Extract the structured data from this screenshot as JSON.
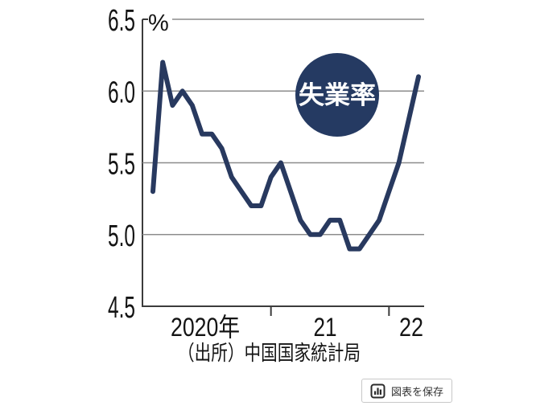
{
  "chart_data": {
    "type": "line",
    "badge_label": "失業率",
    "unit_label": "%",
    "x": [
      "2020-01",
      "2020-02",
      "2020-03",
      "2020-04",
      "2020-05",
      "2020-06",
      "2020-07",
      "2020-08",
      "2020-09",
      "2020-10",
      "2020-11",
      "2020-12",
      "2021-01",
      "2021-02",
      "2021-03",
      "2021-04",
      "2021-05",
      "2021-06",
      "2021-07",
      "2021-08",
      "2021-09",
      "2021-10",
      "2021-11",
      "2021-12",
      "2022-01",
      "2022-02",
      "2022-03",
      "2022-04"
    ],
    "series": [
      {
        "name": "失業率",
        "values": [
          5.3,
          6.2,
          5.9,
          6.0,
          5.9,
          5.7,
          5.7,
          5.6,
          5.4,
          5.3,
          5.2,
          5.2,
          5.4,
          5.5,
          5.3,
          5.1,
          5.0,
          5.0,
          5.1,
          5.1,
          4.9,
          4.9,
          5.0,
          5.1,
          5.3,
          5.5,
          5.8,
          6.1
        ]
      }
    ],
    "y_ticks": [
      6.5,
      6.0,
      5.5,
      5.0,
      4.5
    ],
    "ylim": [
      4.5,
      6.5
    ],
    "x_tick_labels": [
      "2020年",
      "21",
      "22"
    ],
    "year_boundaries": [
      "2021-01",
      "2022-01"
    ],
    "grid": true,
    "legend_position": "badge-inside-plot",
    "source": "（出所）中国国家統計局",
    "colors": {
      "line": "#28395f",
      "badge": "#253a62",
      "grid": "#8c8c8c",
      "axis": "#3c3c3c",
      "text": "#141414"
    }
  },
  "save_button": {
    "label": "図表を保存",
    "icon": "bar-chart-icon"
  }
}
